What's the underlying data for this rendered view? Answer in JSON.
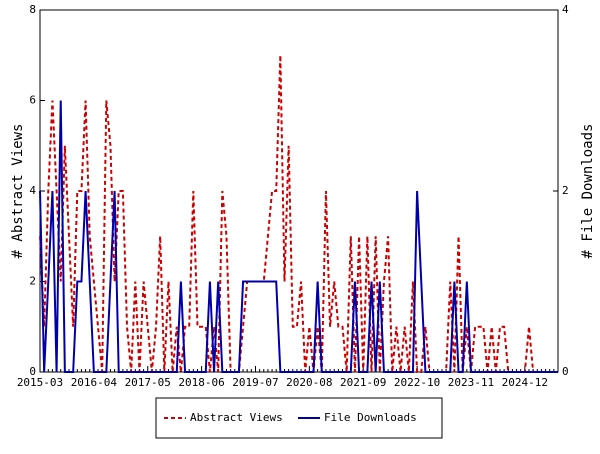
{
  "chart_data": {
    "type": "line",
    "categories": [
      "2015-03",
      null,
      null,
      null,
      null,
      null,
      null,
      null,
      null,
      null,
      null,
      null,
      null,
      "2016-04",
      null,
      null,
      null,
      null,
      null,
      null,
      null,
      null,
      null,
      null,
      null,
      null,
      "2017-05",
      null,
      null,
      null,
      null,
      null,
      null,
      null,
      null,
      null,
      null,
      null,
      null,
      "2018-06",
      null,
      null,
      null,
      null,
      null,
      null,
      null,
      null,
      null,
      null,
      null,
      null,
      "2019-07",
      null,
      null,
      null,
      null,
      null,
      null,
      null,
      null,
      null,
      null,
      null,
      null,
      "2020-08",
      null,
      null,
      null,
      null,
      null,
      null,
      null,
      null,
      null,
      null,
      null,
      null,
      "2021-09",
      null,
      null,
      null,
      null,
      null,
      null,
      null,
      null,
      null,
      null,
      null,
      null,
      "2022-10",
      null,
      null,
      null,
      null,
      null,
      null,
      null,
      null,
      null,
      null,
      null,
      null,
      "2023-11",
      null,
      null,
      null,
      null,
      null,
      null,
      null,
      null,
      null,
      null,
      null,
      null,
      "2024-12",
      null,
      null,
      null,
      null,
      null,
      null,
      null,
      null
    ],
    "series": [
      {
        "name": "Abstract Views",
        "color": "#cc0000",
        "dash": true,
        "axis": "y",
        "values": [
          3,
          1,
          4,
          6,
          4,
          2,
          5,
          3,
          1,
          4,
          4,
          6,
          3,
          2,
          1,
          0,
          6,
          5,
          2,
          4,
          4,
          1,
          0,
          2,
          0,
          2,
          1,
          0,
          1,
          3,
          0,
          2,
          0,
          1,
          0,
          1,
          1,
          4,
          1,
          1,
          1,
          0,
          1,
          0,
          4,
          3,
          0,
          0,
          0,
          1,
          2,
          2,
          2,
          2,
          2,
          3,
          4,
          4,
          7,
          2,
          5,
          1,
          1,
          2,
          0,
          1,
          0,
          1,
          0,
          4,
          1,
          2,
          1,
          1,
          0,
          3,
          0,
          3,
          0,
          3,
          0,
          3,
          0,
          2,
          3,
          0,
          1,
          0,
          1,
          0,
          2,
          0,
          0,
          1,
          0,
          0,
          0,
          0,
          0,
          2,
          0,
          3,
          0,
          1,
          0,
          1,
          1,
          1,
          0,
          1,
          0,
          1,
          1,
          0,
          0,
          0,
          0,
          0,
          1,
          0,
          0,
          0,
          0,
          0,
          0,
          0
        ]
      },
      {
        "name": "File Downloads",
        "color": "#0000aa",
        "dash": false,
        "axis": "y2",
        "values": [
          2,
          0,
          1,
          2,
          0,
          3,
          0,
          0,
          0,
          1,
          1,
          2,
          1,
          0,
          0,
          0,
          0,
          1,
          2,
          0,
          0,
          0,
          0,
          0,
          0,
          0,
          0,
          0,
          0,
          0,
          0,
          0,
          0,
          0,
          1,
          0,
          0,
          0,
          0,
          0,
          0,
          1,
          0,
          1,
          0,
          0,
          0,
          0,
          0,
          1,
          1,
          1,
          1,
          1,
          1,
          1,
          1,
          1,
          0,
          0,
          0,
          0,
          0,
          0,
          0,
          0,
          0,
          1,
          0,
          0,
          0,
          0,
          0,
          0,
          0,
          0,
          1,
          0,
          0,
          0,
          1,
          0,
          1,
          0,
          0,
          0,
          0,
          0,
          0,
          0,
          0,
          2,
          1,
          0,
          0,
          0,
          0,
          0,
          0,
          0,
          1,
          0,
          0,
          1,
          0,
          0,
          0,
          0,
          0,
          0,
          0,
          0,
          0,
          0,
          0,
          0,
          0,
          0,
          0,
          0,
          0,
          0,
          0,
          0,
          0,
          0
        ]
      }
    ],
    "ylabel": "# Abstract Views",
    "y2label": "# File Downloads",
    "ylim": [
      0,
      8
    ],
    "yticks": [
      0,
      2,
      4,
      6,
      8
    ],
    "y2lim": [
      0,
      4
    ],
    "y2ticks": [
      0,
      2,
      4
    ]
  }
}
